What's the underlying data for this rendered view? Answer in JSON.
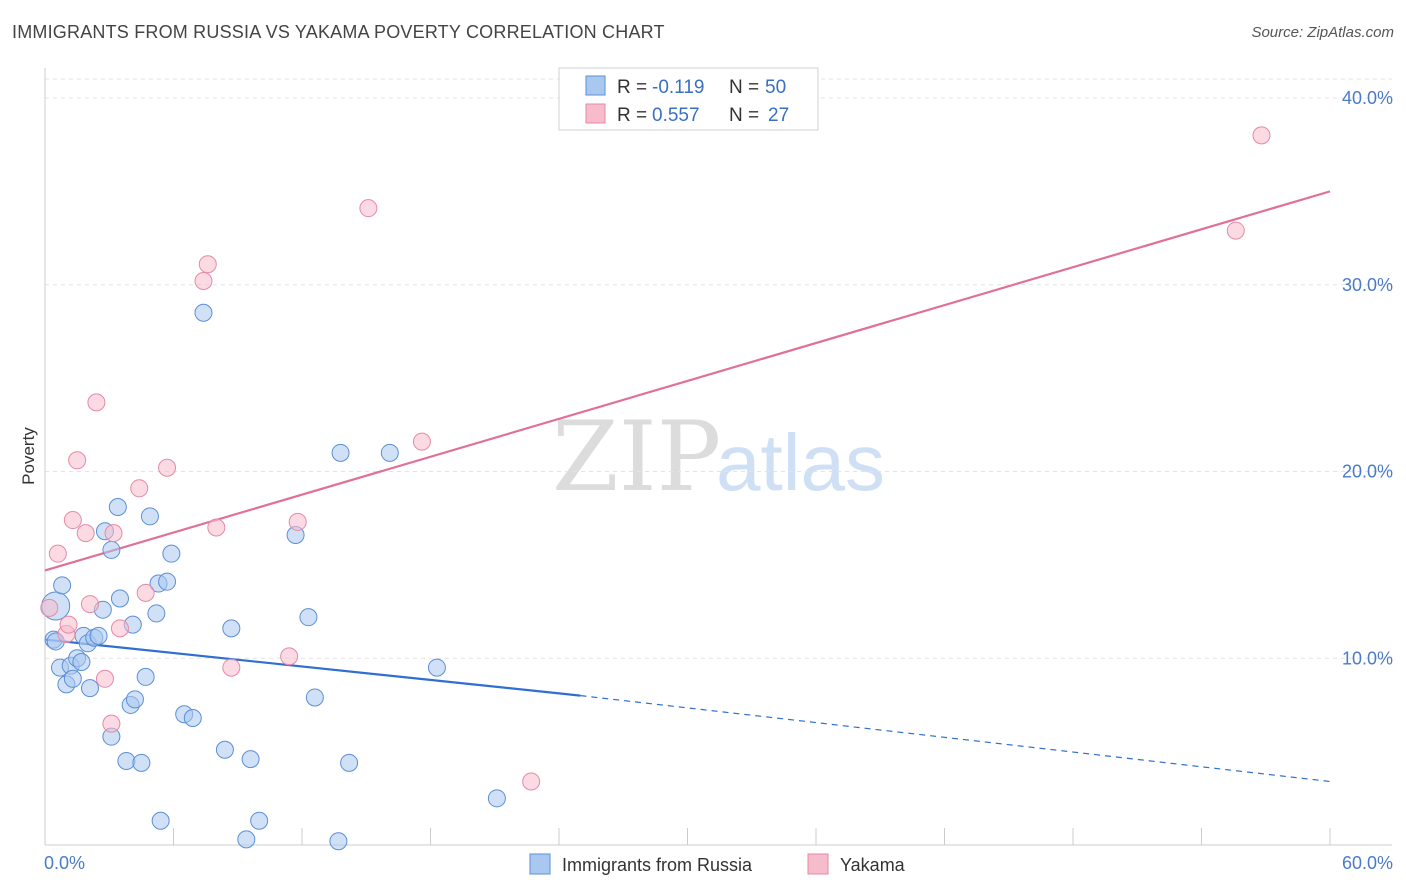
{
  "title": "IMMIGRANTS FROM RUSSIA VS YAKAMA POVERTY CORRELATION CHART",
  "source": "Source: ZipAtlas.com",
  "watermark": {
    "zip": "ZIP",
    "atlas": "atlas"
  },
  "legend": {
    "rows": [
      {
        "r_label": "R =",
        "r_value": "-0.119",
        "n_label": "N =",
        "n_value": "50",
        "color": "#a9c8f0",
        "stroke": "#5b8fd6"
      },
      {
        "r_label": "R =",
        "r_value": "0.557",
        "n_label": "N =",
        "n_value": "27",
        "color": "#f7bccc",
        "stroke": "#e58aa6"
      }
    ]
  },
  "bottom_legend": [
    {
      "label": "Immigrants from Russia",
      "color": "#a9c8f0",
      "stroke": "#5b8fd6"
    },
    {
      "label": "Yakama",
      "color": "#f7bccc",
      "stroke": "#e58aa6"
    }
  ],
  "chart_data": {
    "type": "scatter",
    "xlabel": "",
    "ylabel": "Poverty",
    "xlim": [
      0,
      60
    ],
    "ylim": [
      0,
      40
    ],
    "x_tick_labels": [
      "0.0%",
      "60.0%"
    ],
    "y_ticks": [
      10,
      20,
      30,
      40
    ],
    "y_tick_labels": [
      "10.0%",
      "20.0%",
      "30.0%",
      "40.0%"
    ],
    "grid": true,
    "series": [
      {
        "name": "Immigrants from Russia",
        "color": "#a9c8f0",
        "stroke": "#5b8fd6",
        "line_color": "#2f6fd0",
        "trend": {
          "x0": 0,
          "y0": 11.0,
          "x1": 25,
          "y1": 8.0,
          "dash_x1": 60,
          "dash_y1": 3.4
        },
        "points": [
          [
            0.5,
            12.8
          ],
          [
            0.4,
            11.0
          ],
          [
            0.5,
            10.9
          ],
          [
            0.8,
            13.9
          ],
          [
            0.7,
            9.5
          ],
          [
            1.0,
            8.6
          ],
          [
            1.2,
            9.6
          ],
          [
            1.3,
            8.9
          ],
          [
            1.5,
            10.0
          ],
          [
            1.7,
            9.8
          ],
          [
            1.8,
            11.2
          ],
          [
            2.0,
            10.8
          ],
          [
            2.1,
            8.4
          ],
          [
            2.3,
            11.1
          ],
          [
            2.5,
            11.2
          ],
          [
            2.7,
            12.6
          ],
          [
            2.8,
            16.8
          ],
          [
            3.1,
            15.8
          ],
          [
            3.4,
            18.1
          ],
          [
            3.5,
            13.2
          ],
          [
            3.8,
            4.5
          ],
          [
            4.0,
            7.5
          ],
          [
            4.1,
            11.8
          ],
          [
            4.2,
            7.8
          ],
          [
            3.1,
            5.8
          ],
          [
            4.5,
            4.4
          ],
          [
            4.7,
            9.0
          ],
          [
            4.9,
            17.6
          ],
          [
            5.2,
            12.4
          ],
          [
            5.3,
            14.0
          ],
          [
            5.4,
            1.3
          ],
          [
            5.7,
            14.1
          ],
          [
            5.9,
            15.6
          ],
          [
            6.5,
            7.0
          ],
          [
            6.9,
            6.8
          ],
          [
            7.4,
            28.5
          ],
          [
            8.4,
            5.1
          ],
          [
            8.7,
            11.6
          ],
          [
            9.4,
            0.3
          ],
          [
            9.6,
            4.6
          ],
          [
            10.0,
            1.3
          ],
          [
            11.7,
            16.6
          ],
          [
            12.3,
            12.2
          ],
          [
            12.6,
            7.9
          ],
          [
            13.7,
            0.2
          ],
          [
            13.8,
            21.0
          ],
          [
            14.2,
            4.4
          ],
          [
            16.1,
            21.0
          ],
          [
            18.3,
            9.5
          ],
          [
            21.1,
            2.5
          ]
        ]
      },
      {
        "name": "Yakama",
        "color": "#f7bccc",
        "stroke": "#e58aa6",
        "line_color": "#e0709a",
        "trend": {
          "x0": 0,
          "y0": 14.7,
          "x1": 60,
          "y1": 35.0
        },
        "points": [
          [
            0.2,
            12.7
          ],
          [
            0.6,
            15.6
          ],
          [
            1.0,
            11.3
          ],
          [
            1.1,
            11.8
          ],
          [
            1.3,
            17.4
          ],
          [
            1.5,
            20.6
          ],
          [
            1.9,
            16.7
          ],
          [
            2.1,
            12.9
          ],
          [
            2.4,
            23.7
          ],
          [
            2.8,
            8.9
          ],
          [
            3.1,
            6.5
          ],
          [
            3.2,
            16.7
          ],
          [
            3.5,
            11.6
          ],
          [
            4.4,
            19.1
          ],
          [
            4.7,
            13.5
          ],
          [
            5.7,
            20.2
          ],
          [
            7.4,
            30.2
          ],
          [
            7.6,
            31.1
          ],
          [
            8.0,
            17.0
          ],
          [
            8.7,
            9.5
          ],
          [
            11.4,
            10.1
          ],
          [
            11.8,
            17.3
          ],
          [
            15.1,
            34.1
          ],
          [
            17.6,
            21.6
          ],
          [
            22.7,
            3.4
          ],
          [
            55.6,
            32.9
          ],
          [
            56.8,
            38.0
          ]
        ]
      }
    ]
  }
}
